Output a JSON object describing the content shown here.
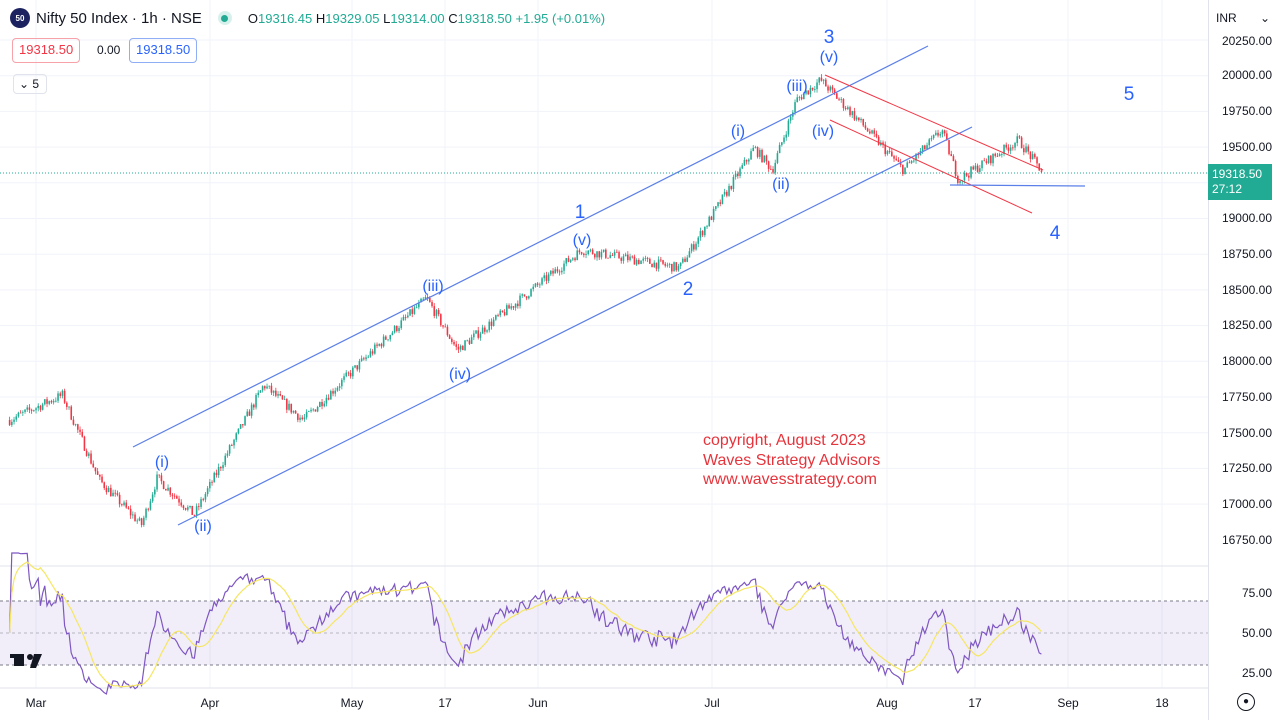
{
  "header": {
    "symbol_logo": "50",
    "title": "Nifty 50 Index · 1h · NSE",
    "open_label": "O",
    "open": "19316.45",
    "high_label": "H",
    "high": "19329.05",
    "low_label": "L",
    "low": "19314.00",
    "close_label": "C",
    "close": "19318.50",
    "change": "+1.95 (+0.01%)"
  },
  "price_boxes": {
    "sell": "19318.50",
    "spread": "0.00",
    "buy": "19318.50"
  },
  "indicators_collapse": {
    "count": "5"
  },
  "currency": "INR",
  "last_price": {
    "value": "19318.50",
    "countdown": "27:12"
  },
  "colors": {
    "up": "#22ab94",
    "down": "#f23645",
    "annotation": "#2962ff",
    "rsi": "#7e57c2",
    "rsi_ma": "#f5e663",
    "copyright": "#e5343c"
  },
  "price_axis": [
    "20250.00",
    "20000.00",
    "19750.00",
    "19500.00",
    "19000.00",
    "18750.00",
    "18500.00",
    "18250.00",
    "18000.00",
    "17750.00",
    "17500.00",
    "17250.00",
    "17000.00",
    "16750.00"
  ],
  "rsi_axis": [
    "75.00",
    "50.00",
    "25.00"
  ],
  "time_axis": [
    "Mar",
    "Apr",
    "May",
    "17",
    "Jun",
    "Jul",
    "Aug",
    "17",
    "Sep",
    "18"
  ],
  "waves": {
    "w3": "3",
    "w3v": "(v)",
    "w3iii": "(iii)",
    "w3iv": "(iv)",
    "w3i": "(i)",
    "w3ii": "(ii)",
    "w1": "1",
    "w1v": "(v)",
    "w2": "2",
    "w1iii": "(iii)",
    "w1iv": "(iv)",
    "w1i": "(i)",
    "w1ii": "(ii)",
    "w5": "5",
    "w4": "4"
  },
  "copyright": [
    "copyright, August 2023",
    "Waves Strategy Advisors",
    "www.wavesstrategy.com"
  ],
  "chart_data": {
    "type": "candlestick",
    "interval": "1h",
    "ylim": [
      16750,
      20250
    ],
    "rsi_levels": [
      70,
      50,
      30
    ],
    "approx_pivots": [
      [
        "2023-02-24",
        17590
      ],
      [
        "2023-03-06",
        17765
      ],
      [
        "2023-03-13",
        17170
      ],
      [
        "2023-03-21",
        16855
      ],
      [
        "2023-03-24",
        17184
      ],
      [
        "2023-03-31",
        16925
      ],
      [
        "2023-04-14",
        17835
      ],
      [
        "2023-04-22",
        17590
      ],
      [
        "2023-05-14",
        18444
      ],
      [
        "2023-05-19",
        18080
      ],
      [
        "2023-06-09",
        18780
      ],
      [
        "2023-06-27",
        18654
      ],
      [
        "2023-07-10",
        19494
      ],
      [
        "2023-07-13",
        19340
      ],
      [
        "2023-07-17",
        19830
      ],
      [
        "2023-07-21",
        19970
      ],
      [
        "2023-07-28",
        19655
      ],
      [
        "2023-08-04",
        19340
      ],
      [
        "2023-08-11",
        19620
      ],
      [
        "2023-08-14",
        19270
      ],
      [
        "2023-08-24",
        19550
      ],
      [
        "2023-08-28",
        19318.5
      ]
    ]
  }
}
